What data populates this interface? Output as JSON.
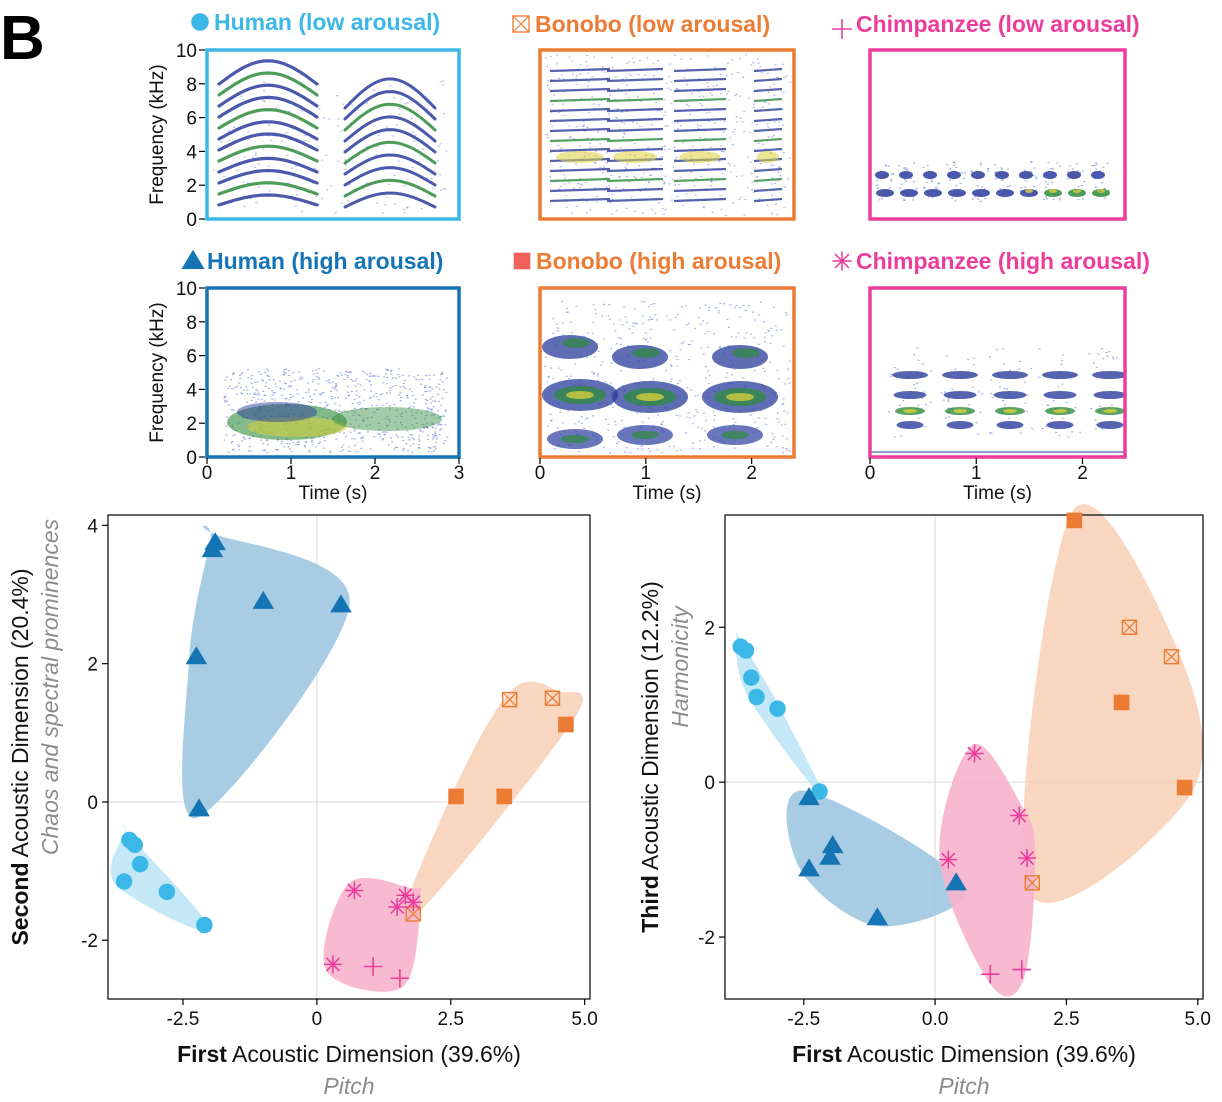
{
  "panel_letter": "B",
  "colors": {
    "human_low": "#3bb8e8",
    "human_high": "#1474b4",
    "bonobo": "#ec7c34",
    "bonobo_high_marker": "#f0605a",
    "chimpanzee": "#ec3c9c",
    "hull_human_low": "#bfe6f6",
    "hull_human_high": "#9fc6e0",
    "hull_bonobo": "#f8d2b8",
    "hull_chimp": "#f6b2cc",
    "axis_subtitle": "#8c8c8c"
  },
  "spectrograms": {
    "ylabel": "Frequency (kHz)",
    "xlabel": "Time (s)",
    "yticks": [
      "0",
      "2",
      "4",
      "6",
      "8",
      "10"
    ],
    "panels": [
      {
        "key": "human_low",
        "title": "Human (low arousal)",
        "marker": "circle",
        "duration_s": 3,
        "xticks": [],
        "frame": "human_low"
      },
      {
        "key": "bonobo_low",
        "title": "Bonobo (low arousal)",
        "marker": "crossed-square",
        "duration_s": 2.4,
        "xticks": [],
        "frame": "bonobo"
      },
      {
        "key": "chimp_low",
        "title": "Chimpanzee (low arousal)",
        "marker": "plus",
        "duration_s": 2.4,
        "xticks": [],
        "frame": "chimpanzee"
      },
      {
        "key": "human_high",
        "title": "Human (high arousal)",
        "marker": "triangle",
        "duration_s": 3,
        "xticks": [
          "0",
          "1",
          "2",
          "3"
        ],
        "frame": "human_high"
      },
      {
        "key": "bonobo_high",
        "title": "Bonobo (high arousal)",
        "marker": "square",
        "duration_s": 2.4,
        "xticks": [
          "0",
          "1",
          "2"
        ],
        "frame": "bonobo"
      },
      {
        "key": "chimp_high",
        "title": "Chimpanzee (high arousal)",
        "marker": "asterisk",
        "duration_s": 2.4,
        "xticks": [
          "0",
          "1",
          "2"
        ],
        "frame": "chimpanzee"
      }
    ]
  },
  "chart_data": [
    {
      "type": "scatter",
      "xlabel_bold": "First",
      "xlabel_rest": " Acoustic Dimension (39.6%)",
      "xlabel_sub": "Pitch",
      "ylabel_bold": "Second",
      "ylabel_rest": " Acoustic Dimension (20.4%)",
      "ylabel_sub": "Chaos and spectral prominences",
      "xlim": [
        -3.9,
        5.1
      ],
      "ylim": [
        -2.85,
        4.15
      ],
      "xticks": [
        -2.5,
        0,
        2.5,
        5.0
      ],
      "xtick_labels": [
        "-2.5",
        "0",
        "2.5",
        "5.0"
      ],
      "yticks": [
        -2,
        0,
        2,
        4
      ],
      "ytick_labels": [
        "-2",
        "0",
        "2",
        "4"
      ],
      "grid": "zero-lines",
      "series": [
        {
          "key": "human_low",
          "marker": "circle",
          "x": [
            -3.5,
            -3.4,
            -3.3,
            -3.6,
            -2.8,
            -2.1
          ],
          "y": [
            -0.55,
            -0.62,
            -0.9,
            -1.15,
            -1.3,
            -1.78
          ]
        },
        {
          "key": "human_high",
          "marker": "triangle",
          "x": [
            -1.9,
            -1.95,
            -1.0,
            0.45,
            -2.25,
            -2.2
          ],
          "y": [
            3.75,
            3.65,
            2.9,
            2.85,
            2.1,
            -0.1
          ]
        },
        {
          "key": "bonobo_low",
          "marker": "crossed-square",
          "x": [
            3.6,
            4.4,
            1.8
          ],
          "y": [
            1.48,
            1.5,
            -1.62
          ]
        },
        {
          "key": "bonobo_high",
          "marker": "square",
          "x": [
            4.65,
            2.6,
            3.5
          ],
          "y": [
            1.12,
            0.08,
            0.08
          ]
        },
        {
          "key": "chimp_low",
          "marker": "plus",
          "x": [
            1.05,
            1.55
          ],
          "y": [
            -2.38,
            -2.55
          ]
        },
        {
          "key": "chimp_high",
          "marker": "asterisk",
          "x": [
            0.7,
            0.3,
            1.5,
            1.65,
            1.8
          ],
          "y": [
            -1.28,
            -2.35,
            -1.52,
            -1.35,
            -1.45
          ]
        }
      ]
    },
    {
      "type": "scatter",
      "xlabel_bold": "First",
      "xlabel_rest": " Acoustic Dimension (39.6%)",
      "xlabel_sub": "Pitch",
      "ylabel_bold": "Third",
      "ylabel_rest": " Acoustic Dimension (12.2%)",
      "ylabel_sub": "Harmonicity",
      "xlim": [
        -4.0,
        5.1
      ],
      "ylim": [
        -2.8,
        3.45
      ],
      "xticks": [
        -2.5,
        0,
        2.5,
        5.0
      ],
      "xtick_labels": [
        "-2.5",
        "0.0",
        "2.5",
        "5.0"
      ],
      "yticks": [
        -2,
        0,
        2
      ],
      "ytick_labels": [
        "-2",
        "0",
        "2"
      ],
      "grid": "zero-lines",
      "series": [
        {
          "key": "human_low",
          "marker": "circle",
          "x": [
            -3.7,
            -3.6,
            -3.5,
            -3.4,
            -3.0,
            -2.2
          ],
          "y": [
            1.75,
            1.7,
            1.35,
            1.1,
            0.95,
            -0.12
          ]
        },
        {
          "key": "human_high",
          "marker": "triangle",
          "x": [
            -2.4,
            -1.95,
            -2.0,
            -2.4,
            -1.1,
            0.4
          ],
          "y": [
            -0.2,
            -0.82,
            -0.97,
            -1.12,
            -1.75,
            -1.3
          ]
        },
        {
          "key": "bonobo_low",
          "marker": "crossed-square",
          "x": [
            3.7,
            4.5,
            1.85
          ],
          "y": [
            2.0,
            1.62,
            -1.3
          ]
        },
        {
          "key": "bonobo_high",
          "marker": "square",
          "x": [
            2.65,
            3.55,
            4.75
          ],
          "y": [
            3.38,
            1.03,
            -0.07
          ]
        },
        {
          "key": "chimp_low",
          "marker": "plus",
          "x": [
            1.05,
            1.65
          ],
          "y": [
            -2.48,
            -2.42
          ]
        },
        {
          "key": "chimp_high",
          "marker": "asterisk",
          "x": [
            0.75,
            0.25,
            1.6,
            1.75
          ],
          "y": [
            0.37,
            -1.0,
            -0.43,
            -0.98
          ]
        }
      ]
    }
  ]
}
